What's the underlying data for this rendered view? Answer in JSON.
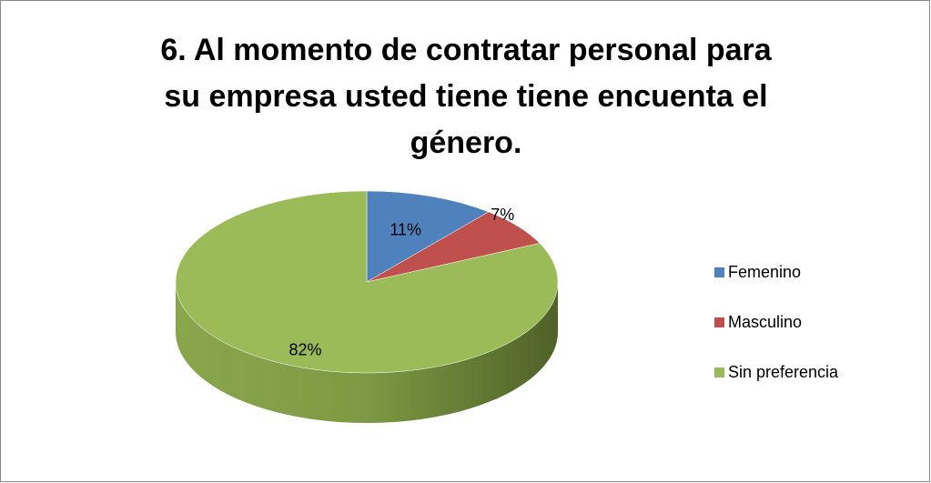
{
  "chart_data": {
    "type": "pie",
    "title": "6. Al momento de contratar personal para su empresa usted tiene tiene encuenta el género.",
    "categories": [
      "Femenino",
      "Masculino",
      "Sin preferencia"
    ],
    "values": [
      11,
      7,
      82
    ],
    "value_labels": [
      "11%",
      "7%",
      "82%"
    ],
    "colors": [
      "#4f81bd",
      "#c0504d",
      "#9bbb59"
    ],
    "legend": "right"
  }
}
